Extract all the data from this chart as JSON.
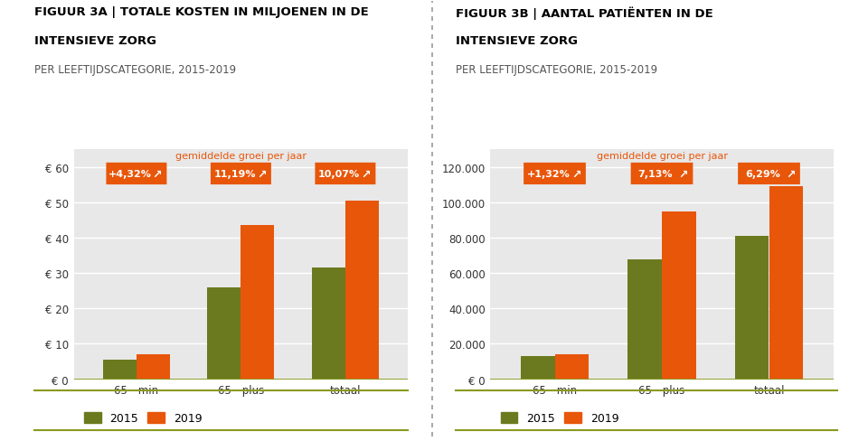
{
  "fig3a": {
    "title_line1": "FIGUUR 3A | TOTALE KOSTEN IN MILJOENEN IN DE",
    "title_line2": "INTENSIEVE ZORG",
    "subtitle": "PER LEEFTIJDSCATEGORIE, 2015-2019",
    "categories": [
      "65 - min",
      "65 - plus",
      "totaal"
    ],
    "values_2015": [
      5.5,
      26.0,
      31.5
    ],
    "values_2019": [
      7.0,
      43.5,
      50.5
    ],
    "ylim": [
      0,
      65
    ],
    "yticks": [
      0,
      10,
      20,
      30,
      40,
      50,
      60
    ],
    "ytick_labels": [
      "€ 0",
      "€ 10",
      "€ 20",
      "€ 30",
      "€ 40",
      "€ 50",
      "€ 60"
    ],
    "growth_labels": [
      "+4,32%",
      "11,19%",
      "10,07%"
    ],
    "groei_text": "gemiddelde groei per jaar"
  },
  "fig3b": {
    "title_line1": "FIGUUR 3B | AANTAL PATIËNTEN IN DE",
    "title_line2": "INTENSIEVE ZORG",
    "subtitle": "PER LEEFTIJDSCATEGORIE, 2015-2019",
    "categories": [
      "65 - min",
      "65 - plus",
      "totaal"
    ],
    "values_2015": [
      13000,
      68000,
      81000
    ],
    "values_2019": [
      14000,
      95000,
      109000
    ],
    "ylim": [
      0,
      130000
    ],
    "yticks": [
      0,
      20000,
      40000,
      60000,
      80000,
      100000,
      120000
    ],
    "ytick_labels": [
      "€ 0",
      "20.000",
      "40.000",
      "60.000",
      "80.000",
      "100.000",
      "120.000"
    ],
    "growth_labels": [
      "+1,32%",
      "7,13%",
      "6,29%"
    ],
    "groei_text": "gemiddelde groei per jaar"
  },
  "color_green": "#6b7a1e",
  "color_orange": "#e8560a",
  "color_bg": "#e8e8e8",
  "bar_width": 0.32,
  "olive_line": "#8a9a1e"
}
